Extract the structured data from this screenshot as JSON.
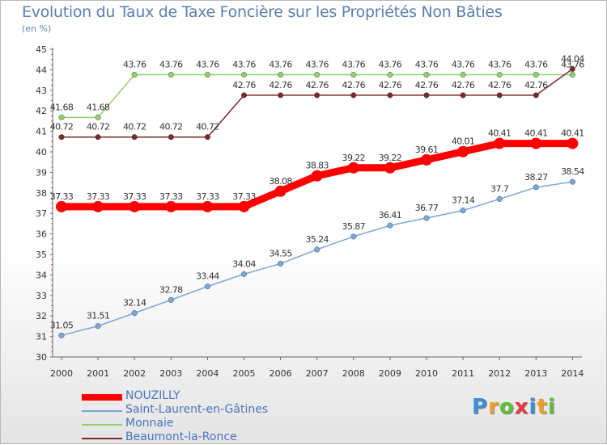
{
  "title": "Evolution du Taux de Taxe Foncière sur les Propriétés Non Bâties",
  "unit_label": "(en %)",
  "brand": "Proxiti",
  "chart_data": {
    "type": "line",
    "x": [
      "2000",
      "2001",
      "2002",
      "2003",
      "2004",
      "2005",
      "2006",
      "2007",
      "2008",
      "2009",
      "2010",
      "2011",
      "2012",
      "2013",
      "2014"
    ],
    "ylim": [
      30,
      45
    ],
    "yticks": [
      "30",
      "31",
      "32",
      "33",
      "34",
      "35",
      "36",
      "37",
      "38",
      "39",
      "40",
      "41",
      "42",
      "43",
      "44",
      "45"
    ],
    "grid": false,
    "legend_position": "bottom-left",
    "series": [
      {
        "name": "NOUZILLY",
        "color": "#ff0000",
        "emphasis": true,
        "values": [
          37.33,
          37.33,
          37.33,
          37.33,
          37.33,
          37.33,
          38.08,
          38.83,
          39.22,
          39.22,
          39.61,
          40.01,
          40.41,
          40.41,
          40.41
        ],
        "labels": [
          "37.33",
          "37.33",
          "37.33",
          "37.33",
          "37.33",
          "37.33",
          "38.08",
          "38.83",
          "39.22",
          "39.22",
          "39.61",
          "40.01",
          "40.41",
          "40.41",
          "40.41"
        ]
      },
      {
        "name": "Saint-Laurent-en-Gâtines",
        "color": "#7aa7d8",
        "values": [
          31.05,
          31.51,
          32.14,
          32.78,
          33.44,
          34.04,
          34.55,
          35.24,
          35.87,
          36.41,
          36.77,
          37.14,
          37.7,
          38.27,
          38.54
        ],
        "labels": [
          "31.05",
          "31.51",
          "32.14",
          "32.78",
          "33.44",
          "34.04",
          "34.55",
          "35.24",
          "35.87",
          "36.41",
          "36.77",
          "37.14",
          "37.7",
          "38.27",
          "38.54"
        ]
      },
      {
        "name": "Monnaie",
        "color": "#8fd16a",
        "values": [
          41.68,
          41.68,
          43.76,
          43.76,
          43.76,
          43.76,
          43.76,
          43.76,
          43.76,
          43.76,
          43.76,
          43.76,
          43.76,
          43.76,
          43.76
        ],
        "labels": [
          "41.68",
          "41.68",
          "43.76",
          "43.76",
          "43.76",
          "43.76",
          "43.76",
          "43.76",
          "43.76",
          "43.76",
          "43.76",
          "43.76",
          "43.76",
          "43.76",
          "43.76"
        ]
      },
      {
        "name": "Beaumont-la-Ronce",
        "color": "#7a2a2a",
        "values": [
          40.72,
          40.72,
          40.72,
          40.72,
          40.72,
          42.76,
          42.76,
          42.76,
          42.76,
          42.76,
          42.76,
          42.76,
          42.76,
          42.76,
          44.04
        ],
        "labels": [
          "40.72",
          "40.72",
          "40.72",
          "40.72",
          "40.72",
          "42.76",
          "42.76",
          "42.76",
          "42.76",
          "42.76",
          "42.76",
          "42.76",
          "42.76",
          "42.76",
          "44.04"
        ]
      }
    ]
  }
}
